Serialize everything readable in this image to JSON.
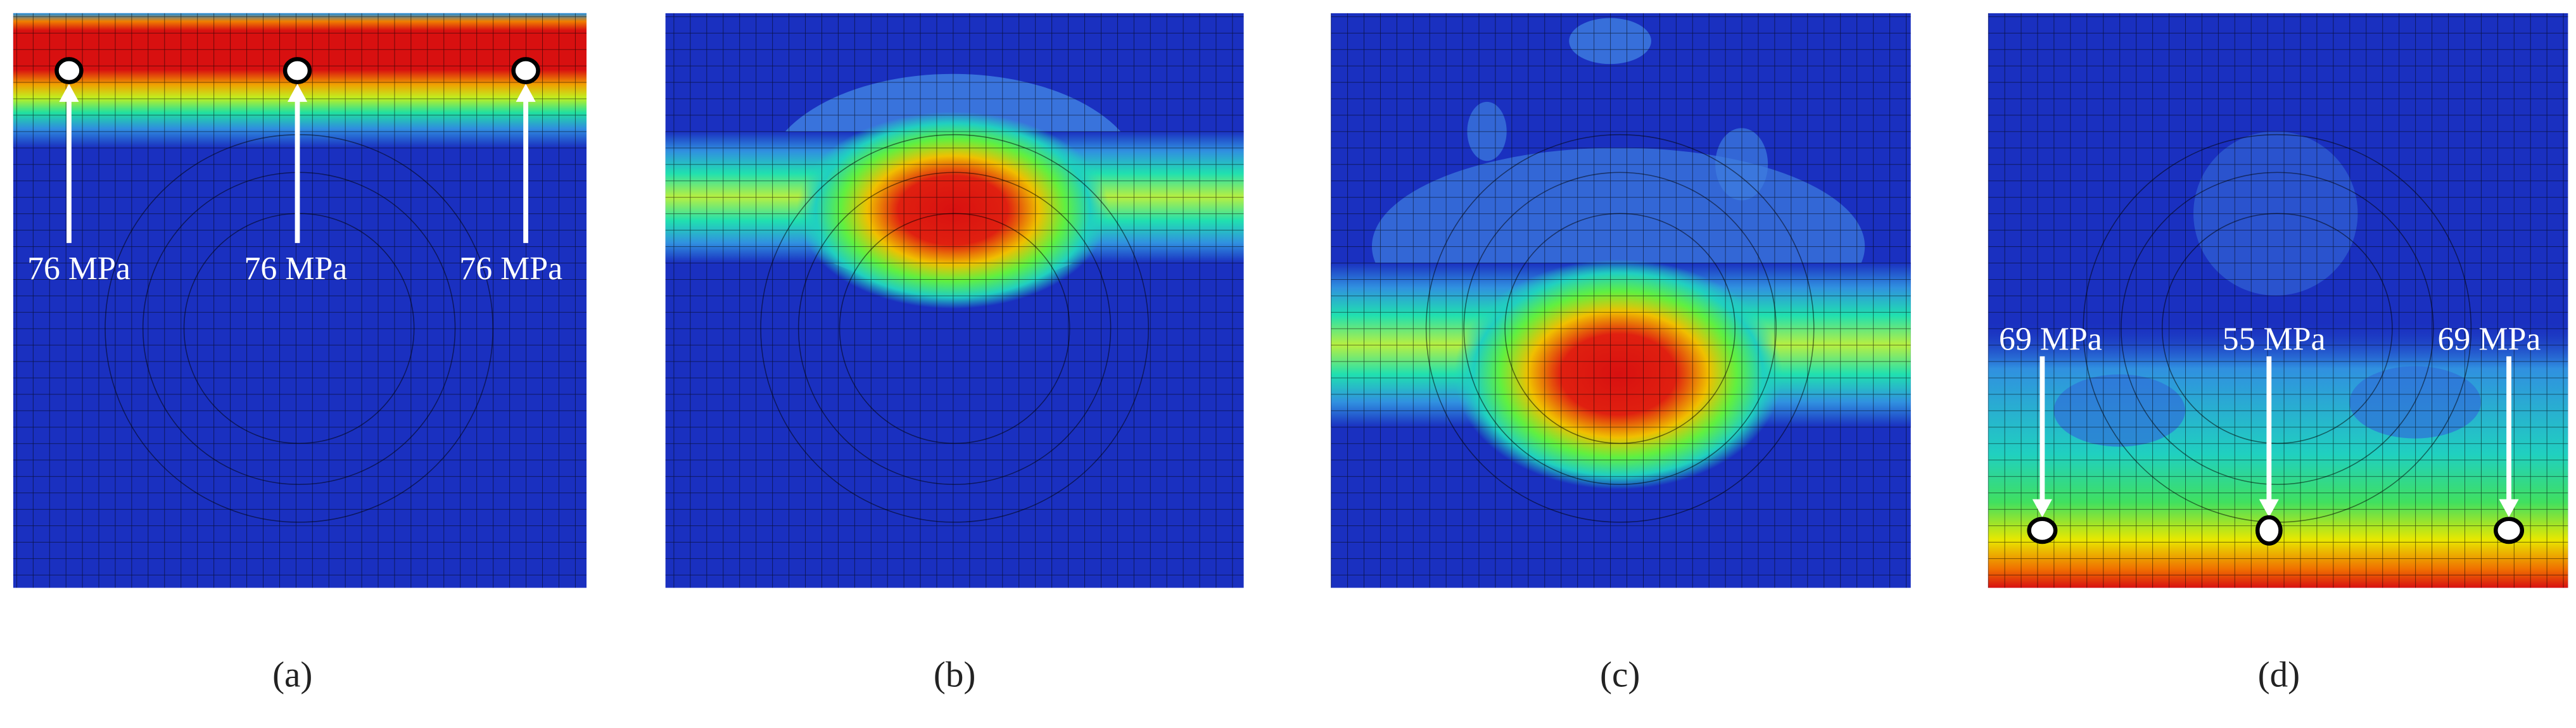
{
  "panels": [
    {
      "label": "(a)",
      "annotations": [
        "76 MPa",
        "76 MPa",
        "76 MPa"
      ]
    },
    {
      "label": "(b)"
    },
    {
      "label": "(c)"
    },
    {
      "label": "(d)",
      "annotations": [
        "69 MPa",
        "55 MPa",
        "69 MPa"
      ]
    }
  ]
}
